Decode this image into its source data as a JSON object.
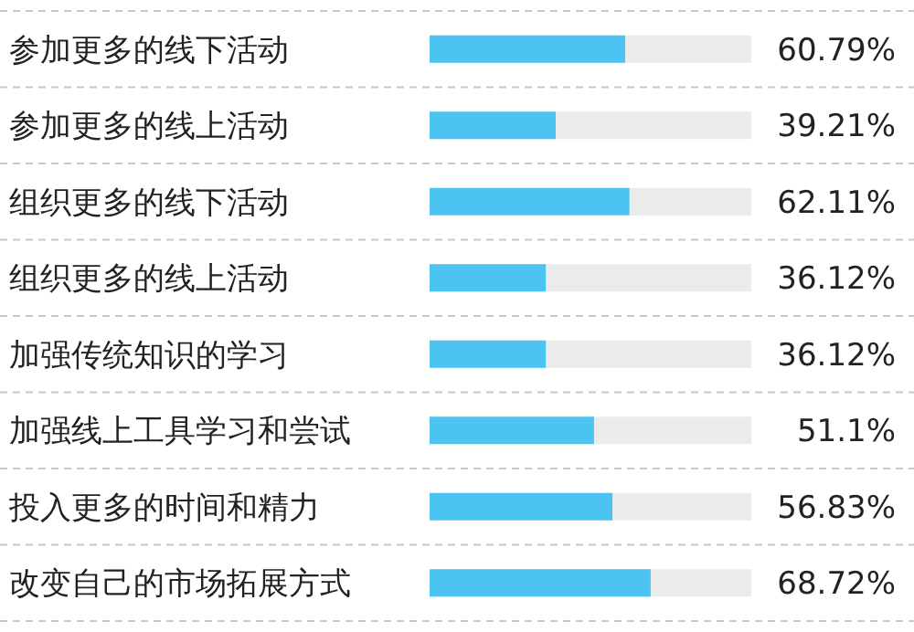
{
  "chart_data": {
    "type": "bar",
    "orientation": "horizontal",
    "categories": [
      "参加更多的线下活动",
      "参加更多的线上活动",
      "组织更多的线下活动",
      "组织更多的线上活动",
      "加强传统知识的学习",
      "加强线上工具学习和尝试",
      "投入更多的时间和精力",
      "改变自己的市场拓展方式"
    ],
    "values": [
      60.79,
      39.21,
      62.11,
      36.12,
      36.12,
      51.1,
      56.83,
      68.72
    ],
    "value_labels": [
      "60.79%",
      "39.21%",
      "62.11%",
      "36.12%",
      "36.12%",
      "51.1%",
      "56.83%",
      "68.72%"
    ],
    "color": "#4cc3f1",
    "xlim": [
      0,
      100
    ]
  }
}
